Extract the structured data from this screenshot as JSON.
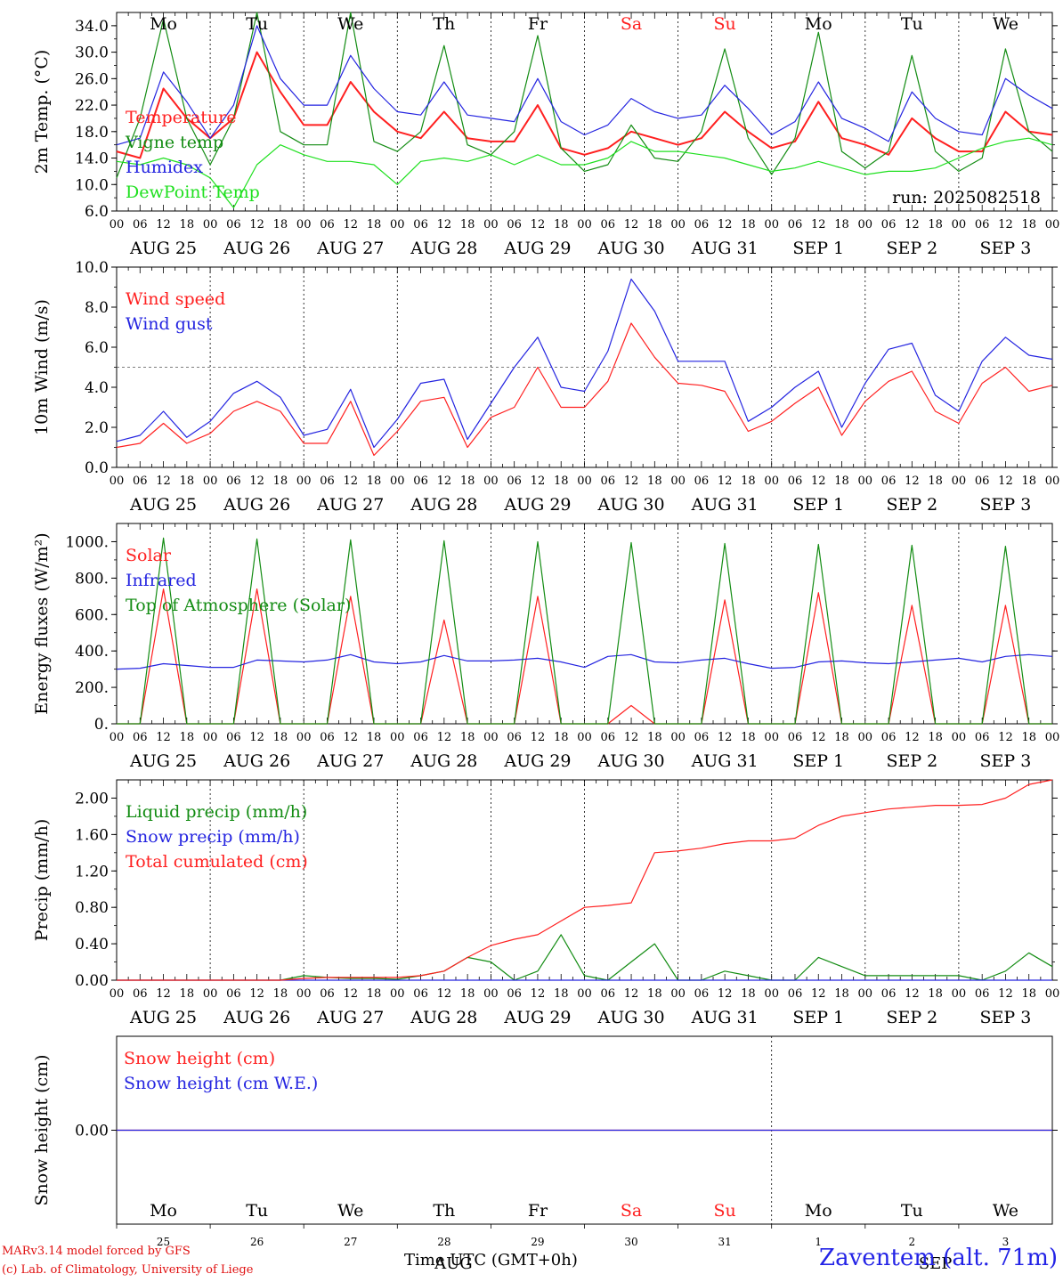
{
  "chart_data": [
    {
      "type": "line",
      "ylabel": "2m Temp. (°C)",
      "ylim": [
        6,
        36
      ],
      "yticks": [
        "6.0",
        "10.0",
        "14.0",
        "18.0",
        "22.0",
        "26.0",
        "30.0",
        "34.0"
      ],
      "x": [
        "08-25 00",
        "08-25 06",
        "08-25 12",
        "08-25 18",
        "08-26 00",
        "08-26 06",
        "08-26 12",
        "08-26 18",
        "08-27 00",
        "08-27 06",
        "08-27 12",
        "08-27 18",
        "08-28 00",
        "08-28 06",
        "08-28 12",
        "08-28 18",
        "08-29 00",
        "08-29 06",
        "08-29 12",
        "08-29 18",
        "08-30 00",
        "08-30 06",
        "08-30 12",
        "08-30 18",
        "08-31 00",
        "08-31 06",
        "08-31 12",
        "08-31 18",
        "09-01 00",
        "09-01 06",
        "09-01 12",
        "09-01 18",
        "09-02 00",
        "09-02 06",
        "09-02 12",
        "09-02 18",
        "09-03 00",
        "09-03 06",
        "09-03 12",
        "09-03 18",
        "09-04 00"
      ],
      "series": [
        {
          "name": "Temperature",
          "color": "#ff2020",
          "values": [
            15.0,
            14.0,
            24.5,
            20.0,
            17.0,
            20.0,
            30.0,
            24.0,
            19.0,
            19.0,
            25.5,
            21.0,
            18.0,
            17.0,
            21.0,
            17.0,
            16.5,
            16.5,
            22.0,
            15.5,
            14.5,
            15.5,
            18.0,
            17.0,
            16.0,
            17.0,
            21.0,
            18.0,
            15.5,
            16.5,
            22.5,
            17.0,
            16.0,
            14.5,
            20.0,
            17.0,
            15.0,
            15.0,
            21.0,
            18.0,
            17.5
          ]
        },
        {
          "name": "Vigne temp",
          "color": "#138c13",
          "values": [
            11.0,
            20.0,
            35.0,
            20.0,
            13.0,
            20.0,
            36.0,
            18.0,
            16.0,
            16.0,
            36.0,
            16.5,
            15.0,
            18.0,
            31.0,
            16.0,
            14.5,
            18.0,
            32.5,
            15.5,
            12.0,
            13.0,
            19.0,
            14.0,
            13.5,
            18.0,
            30.5,
            17.0,
            11.5,
            17.0,
            33.0,
            15.0,
            12.5,
            15.0,
            29.5,
            15.0,
            12.0,
            14.0,
            30.5,
            18.0,
            15.0
          ]
        },
        {
          "name": "Humidex",
          "color": "#2424e0",
          "values": [
            16.0,
            17.0,
            27.0,
            22.5,
            17.0,
            22.0,
            34.0,
            26.0,
            22.0,
            22.0,
            29.5,
            24.5,
            21.0,
            20.5,
            25.5,
            20.5,
            20.0,
            19.5,
            26.0,
            19.5,
            17.5,
            19.0,
            23.0,
            21.0,
            20.0,
            20.5,
            25.0,
            21.5,
            17.5,
            19.5,
            25.5,
            20.0,
            18.5,
            16.5,
            24.0,
            20.0,
            18.0,
            17.5,
            26.0,
            23.5,
            21.5
          ]
        },
        {
          "name": "DewPoint Temp",
          "color": "#20e020",
          "values": [
            13.5,
            13.0,
            14.0,
            13.0,
            11.0,
            6.5,
            13.0,
            16.0,
            14.5,
            13.5,
            13.5,
            13.0,
            10.0,
            13.5,
            14.0,
            13.5,
            14.5,
            13.0,
            14.5,
            13.0,
            13.0,
            14.0,
            16.5,
            15.0,
            15.0,
            14.5,
            14.0,
            13.0,
            12.0,
            12.5,
            13.5,
            12.5,
            11.5,
            12.0,
            12.0,
            12.5,
            14.0,
            15.5,
            16.5,
            17.0,
            16.0
          ]
        }
      ],
      "annotation": "run: 2025082518"
    },
    {
      "type": "line",
      "ylabel": "10m Wind (m/s)",
      "ylim": [
        0,
        10
      ],
      "yticks": [
        "0.0",
        "2.0",
        "4.0",
        "6.0",
        "8.0",
        "10.0"
      ],
      "reference_line": 5.0,
      "x": [
        "08-25 00",
        "08-25 06",
        "08-25 12",
        "08-25 18",
        "08-26 00",
        "08-26 06",
        "08-26 12",
        "08-26 18",
        "08-27 00",
        "08-27 06",
        "08-27 12",
        "08-27 18",
        "08-28 00",
        "08-28 06",
        "08-28 12",
        "08-28 18",
        "08-29 00",
        "08-29 06",
        "08-29 12",
        "08-29 18",
        "08-30 00",
        "08-30 06",
        "08-30 12",
        "08-30 18",
        "08-31 00",
        "08-31 06",
        "08-31 12",
        "08-31 18",
        "09-01 00",
        "09-01 06",
        "09-01 12",
        "09-01 18",
        "09-02 00",
        "09-02 06",
        "09-02 12",
        "09-02 18",
        "09-03 00",
        "09-03 06",
        "09-03 12",
        "09-03 18",
        "09-04 00"
      ],
      "series": [
        {
          "name": "Wind speed",
          "color": "#ff2020",
          "values": [
            1.0,
            1.2,
            2.2,
            1.2,
            1.7,
            2.8,
            3.3,
            2.8,
            1.2,
            1.2,
            3.3,
            0.6,
            1.8,
            3.3,
            3.5,
            1.0,
            2.5,
            3.0,
            5.0,
            3.0,
            3.0,
            4.3,
            7.2,
            5.5,
            4.2,
            4.1,
            3.8,
            1.8,
            2.3,
            3.2,
            4.0,
            1.6,
            3.3,
            4.3,
            4.8,
            2.8,
            2.2,
            4.2,
            5.0,
            3.8,
            4.1
          ]
        },
        {
          "name": "Wind gust",
          "color": "#2424e0",
          "values": [
            1.3,
            1.6,
            2.8,
            1.5,
            2.3,
            3.7,
            4.3,
            3.5,
            1.6,
            1.9,
            3.9,
            1.0,
            2.4,
            4.2,
            4.4,
            1.4,
            3.2,
            5.0,
            6.5,
            4.0,
            3.8,
            5.8,
            9.4,
            7.8,
            5.3,
            5.3,
            5.3,
            2.3,
            3.0,
            4.0,
            4.8,
            2.0,
            4.2,
            5.9,
            6.2,
            3.6,
            2.8,
            5.3,
            6.5,
            5.6,
            5.4
          ]
        }
      ]
    },
    {
      "type": "line",
      "ylabel": "Energy fluxes (W/m²)",
      "ylim": [
        0,
        1100
      ],
      "yticks": [
        "0.",
        "200.",
        "400.",
        "600.",
        "800.",
        "1000."
      ],
      "x": [
        "08-25 00",
        "08-25 06",
        "08-25 12",
        "08-25 18",
        "08-26 00",
        "08-26 06",
        "08-26 12",
        "08-26 18",
        "08-27 00",
        "08-27 06",
        "08-27 12",
        "08-27 18",
        "08-28 00",
        "08-28 06",
        "08-28 12",
        "08-28 18",
        "08-29 00",
        "08-29 06",
        "08-29 12",
        "08-29 18",
        "08-30 00",
        "08-30 06",
        "08-30 12",
        "08-30 18",
        "08-31 00",
        "08-31 06",
        "08-31 12",
        "08-31 18",
        "09-01 00",
        "09-01 06",
        "09-01 12",
        "09-01 18",
        "09-02 00",
        "09-02 06",
        "09-02 12",
        "09-02 18",
        "09-03 00",
        "09-03 06",
        "09-03 12",
        "09-03 18",
        "09-04 00"
      ],
      "series": [
        {
          "name": "Solar",
          "color": "#ff2020",
          "values": [
            0,
            0,
            740,
            0,
            0,
            0,
            740,
            0,
            0,
            0,
            700,
            0,
            0,
            0,
            570,
            0,
            0,
            0,
            700,
            0,
            0,
            0,
            100,
            0,
            0,
            0,
            680,
            0,
            0,
            0,
            720,
            0,
            0,
            0,
            650,
            0,
            0,
            0,
            650,
            0,
            0
          ]
        },
        {
          "name": "Infrared",
          "color": "#2424e0",
          "values": [
            300,
            305,
            330,
            320,
            310,
            310,
            350,
            345,
            340,
            350,
            380,
            340,
            330,
            340,
            375,
            345,
            345,
            350,
            360,
            340,
            310,
            370,
            380,
            340,
            335,
            350,
            360,
            330,
            305,
            310,
            340,
            345,
            335,
            330,
            340,
            350,
            360,
            340,
            370,
            380,
            370
          ]
        },
        {
          "name": "Top of Atmosphere (Solar)",
          "color": "#138c13",
          "values": [
            0,
            0,
            1020,
            0,
            0,
            0,
            1015,
            0,
            0,
            0,
            1010,
            0,
            0,
            0,
            1005,
            0,
            0,
            0,
            1000,
            0,
            0,
            0,
            995,
            0,
            0,
            0,
            990,
            0,
            0,
            0,
            985,
            0,
            0,
            0,
            980,
            0,
            0,
            0,
            975,
            0,
            0
          ]
        }
      ]
    },
    {
      "type": "line",
      "ylabel": "Precip (mm/h)",
      "ylim": [
        0,
        2.2
      ],
      "yticks": [
        "0.00",
        "0.40",
        "0.80",
        "1.20",
        "1.60",
        "2.00"
      ],
      "x": [
        "08-25 00",
        "08-25 06",
        "08-25 12",
        "08-25 18",
        "08-26 00",
        "08-26 06",
        "08-26 12",
        "08-26 18",
        "08-27 00",
        "08-27 06",
        "08-27 12",
        "08-27 18",
        "08-28 00",
        "08-28 06",
        "08-28 12",
        "08-28 18",
        "08-29 00",
        "08-29 06",
        "08-29 12",
        "08-29 18",
        "08-30 00",
        "08-30 06",
        "08-30 12",
        "08-30 18",
        "08-31 00",
        "08-31 06",
        "08-31 12",
        "08-31 18",
        "09-01 00",
        "09-01 06",
        "09-01 12",
        "09-01 18",
        "09-02 00",
        "09-02 06",
        "09-02 12",
        "09-02 18",
        "09-03 00",
        "09-03 06",
        "09-03 12",
        "09-03 18",
        "09-04 00"
      ],
      "series": [
        {
          "name": "Liquid precip (mm/h)",
          "color": "#138c13",
          "values": [
            0,
            0,
            0,
            0,
            0,
            0,
            0,
            0,
            0.05,
            0.03,
            0.02,
            0.02,
            0.01,
            0.05,
            0.1,
            0.25,
            0.2,
            0,
            0.1,
            0.5,
            0.05,
            0,
            0.2,
            0.4,
            0,
            0,
            0.1,
            0.05,
            0,
            0,
            0.25,
            0.15,
            0.05,
            0.05,
            0.05,
            0.05,
            0.05,
            0,
            0.1,
            0.3,
            0.15
          ]
        },
        {
          "name": "Snow precip (mm/h)",
          "color": "#2424e0",
          "values": [
            0,
            0,
            0,
            0,
            0,
            0,
            0,
            0,
            0,
            0,
            0,
            0,
            0,
            0,
            0,
            0,
            0,
            0,
            0,
            0,
            0,
            0,
            0,
            0,
            0,
            0,
            0,
            0,
            0,
            0,
            0,
            0,
            0,
            0,
            0,
            0,
            0,
            0,
            0,
            0,
            0
          ]
        },
        {
          "name": "Total cumulated (cm)",
          "color": "#ff2020",
          "values": [
            0,
            0,
            0,
            0,
            0,
            0,
            0,
            0,
            0.02,
            0.03,
            0.03,
            0.03,
            0.03,
            0.05,
            0.1,
            0.25,
            0.38,
            0.45,
            0.5,
            0.65,
            0.8,
            0.82,
            0.85,
            1.4,
            1.42,
            1.45,
            1.5,
            1.53,
            1.53,
            1.56,
            1.7,
            1.8,
            1.84,
            1.88,
            1.9,
            1.92,
            1.92,
            1.93,
            2.0,
            2.15,
            2.2
          ]
        }
      ]
    },
    {
      "type": "line",
      "ylabel": "Snow height (cm)",
      "ylim": [
        -1,
        1
      ],
      "yticks": [
        "0.00"
      ],
      "x": [
        "08-25 00",
        "08-29 00",
        "09-04 00"
      ],
      "series": [
        {
          "name": "Snow height (cm)",
          "color": "#ff2020",
          "values": [
            0,
            0,
            0
          ]
        },
        {
          "name": "Snow height (cm W.E.)",
          "color": "#2424e0",
          "values": [
            0,
            0,
            0
          ]
        }
      ]
    }
  ],
  "days": {
    "weekday_labels": [
      "Mo",
      "Tu",
      "We",
      "Th",
      "Fr",
      "Sa",
      "Su",
      "Mo",
      "Tu",
      "We"
    ],
    "weekday_colors": [
      "#000000",
      "#000000",
      "#000000",
      "#000000",
      "#000000",
      "#ff2020",
      "#ff2020",
      "#000000",
      "#000000",
      "#000000"
    ],
    "date_labels": [
      "AUG 25",
      "AUG 26",
      "AUG 27",
      "AUG 28",
      "AUG 29",
      "AUG 30",
      "AUG 31",
      "SEP  1",
      "SEP  2",
      "SEP  3"
    ],
    "day_numbers": [
      "25",
      "26",
      "27",
      "28",
      "29",
      "30",
      "31",
      "1",
      "2",
      "3"
    ],
    "month_overlays": [
      "AUG",
      "SEP"
    ],
    "hour_labels": [
      "00",
      "06",
      "12",
      "18"
    ],
    "final_hour": "00"
  },
  "footer": {
    "model": "MARv3.14 model forced by GFS",
    "credit": "(c) Lab. of Climatology, University of Liege",
    "x_title": "Time UTC (GMT+0h)",
    "station": "Zaventem (alt. 71m)"
  },
  "colors": {
    "red": "#ff2020",
    "green": "#138c13",
    "blue": "#2424e0",
    "lightgreen": "#20e020",
    "station": "#2323e6"
  }
}
